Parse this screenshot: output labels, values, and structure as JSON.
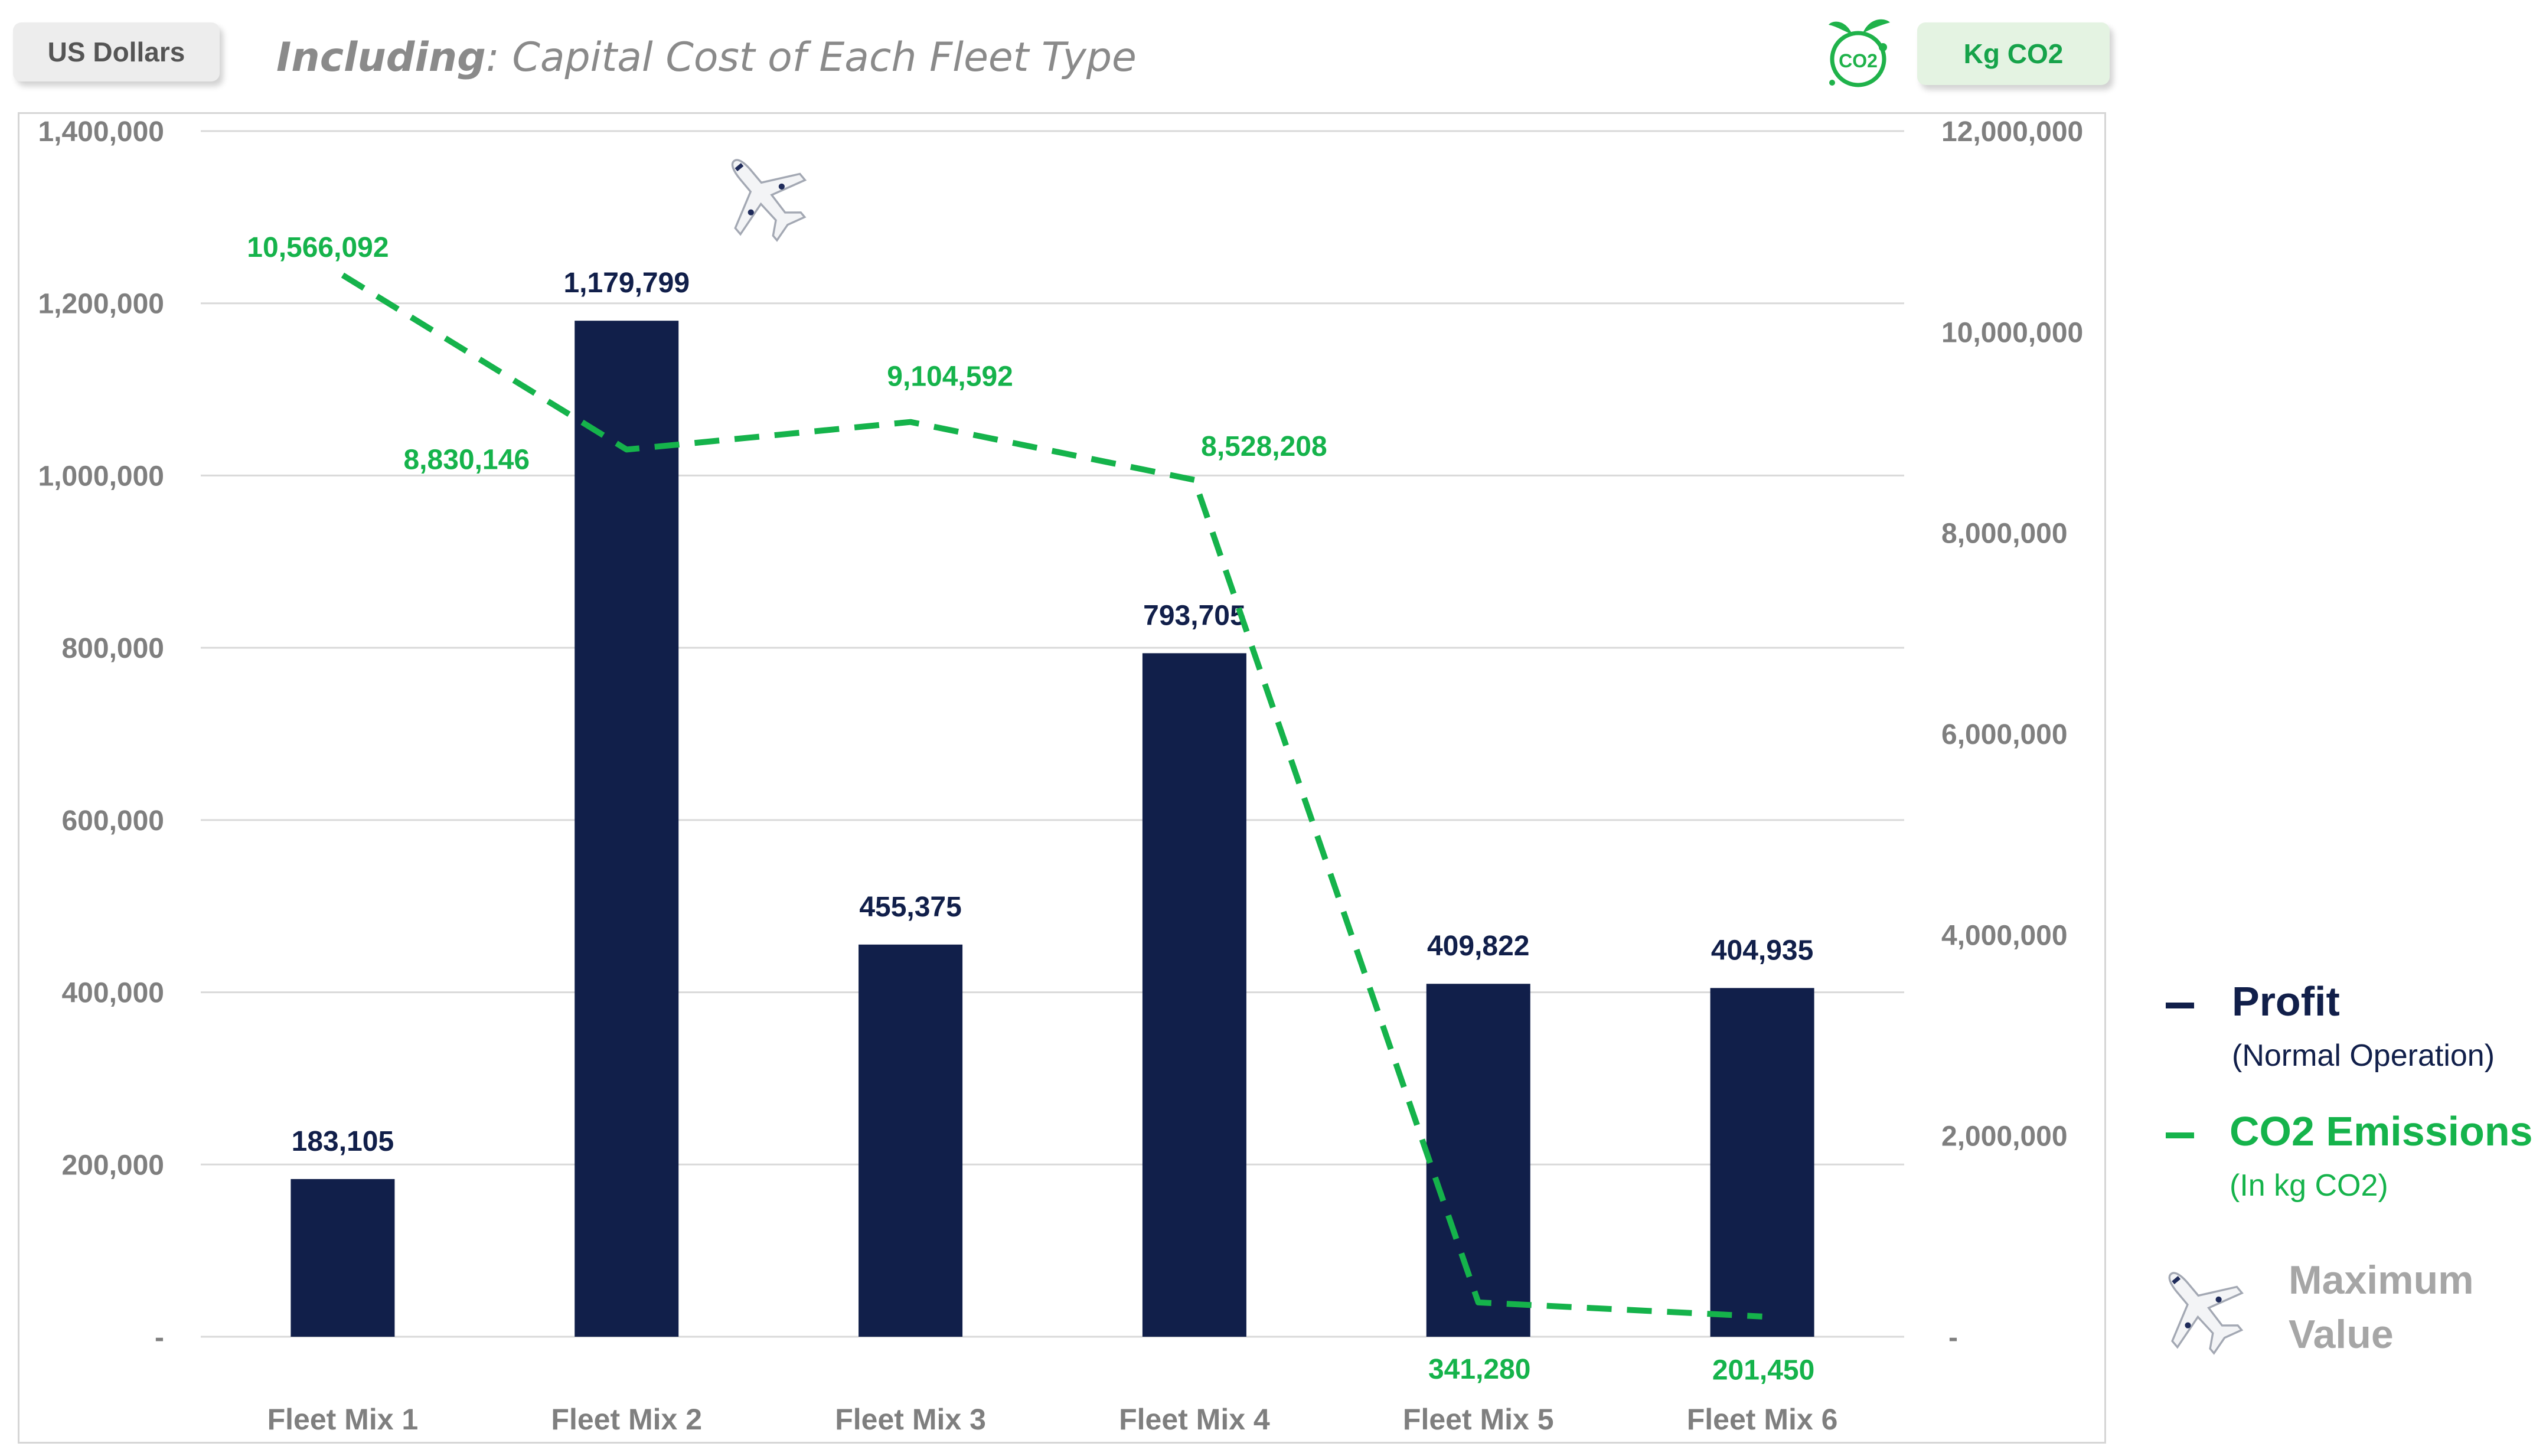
{
  "header": {
    "left_chip": "US Dollars",
    "subtitle_bold": "Including",
    "subtitle_rest": ": Capital Cost of Each Fleet Type",
    "right_chip": "Kg CO2",
    "co2_icon_text": "CO2"
  },
  "colors": {
    "profit": "#111f4a",
    "emissions": "#15b34b",
    "grid": "#d9d9d9",
    "axis_text": "#7f7f7f",
    "category_text": "#7f7f7f"
  },
  "chart_data": {
    "type": "bar",
    "categories": [
      "Fleet Mix 1",
      "Fleet Mix 2",
      "Fleet Mix 3",
      "Fleet Mix 4",
      "Fleet Mix 5",
      "Fleet Mix 6"
    ],
    "series": [
      {
        "name": "Profit",
        "type": "bar",
        "axis": "left",
        "values": [
          183105,
          1179799,
          455375,
          793705,
          409822,
          404935
        ],
        "labels": [
          "183,105",
          "1,179,799",
          "455,375",
          "793,705",
          "409,822",
          "404,935"
        ]
      },
      {
        "name": "CO2 Emissions",
        "type": "line",
        "style": "dashed",
        "axis": "right",
        "values": [
          10566092,
          8830146,
          9104592,
          8528208,
          341280,
          201450
        ],
        "labels": [
          "10,566,092",
          "8,830,146",
          "9,104,592",
          "8,528,208",
          "341,280",
          "201,450"
        ]
      }
    ],
    "y_left": {
      "min": 0,
      "max": 1400000,
      "ticks": [
        0,
        200000,
        400000,
        600000,
        800000,
        1000000,
        1200000,
        1400000
      ],
      "tick_labels": [
        "-",
        "200,000",
        "400,000",
        "600,000",
        "800,000",
        "1,000,000",
        "1,200,000",
        "1,400,000"
      ]
    },
    "y_right": {
      "min": 0,
      "max": 12000000,
      "ticks": [
        0,
        2000000,
        4000000,
        6000000,
        8000000,
        10000000,
        12000000
      ],
      "tick_labels": [
        "-",
        "2,000,000",
        "4,000,000",
        "6,000,000",
        "8,000,000",
        "10,000,000",
        "12,000,000"
      ]
    },
    "grid": true,
    "max_marker_category": "Fleet Mix 2",
    "legend_position": "right"
  },
  "legend": {
    "profit_title": "Profit",
    "profit_sub": "(Normal Operation)",
    "co2_title": "CO2 Emissions",
    "co2_sub": "(In kg CO2)",
    "max_line1": "Maximum",
    "max_line2": "Value"
  }
}
